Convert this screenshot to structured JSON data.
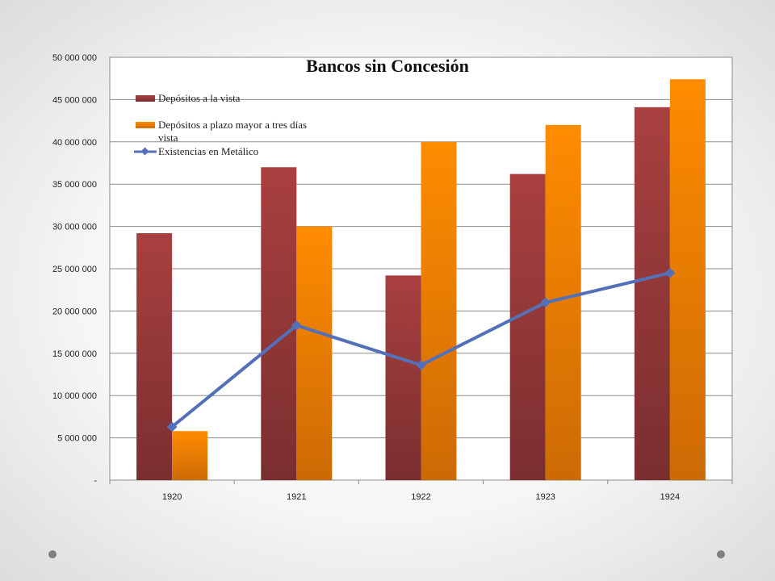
{
  "chart_data": {
    "type": "bar",
    "title": "Bancos sin Concesión",
    "xlabel": "",
    "ylabel": "",
    "categories": [
      "1920",
      "1921",
      "1922",
      "1923",
      "1924"
    ],
    "ylim": [
      0,
      50000000
    ],
    "y_ticks": [
      "-",
      "5 000 000",
      "10 000 000",
      "15 000 000",
      "20 000 000",
      "25 000 000",
      "30 000 000",
      "35 000 000",
      "40 000 000",
      "45 000 000",
      "50 000 000"
    ],
    "grid": true,
    "legend_position": "top-left",
    "series": [
      {
        "name": "Depósitos a la vista",
        "type": "bar",
        "color": "#9b3a3c",
        "values": [
          29200000,
          37000000,
          24200000,
          36200000,
          44100000
        ]
      },
      {
        "name": "Depósitos a plazo mayor a tres días vista",
        "type": "bar",
        "color": "#ff8a00",
        "values": [
          5800000,
          30000000,
          40000000,
          42000000,
          47400000
        ]
      },
      {
        "name": "Existencias en Metálico",
        "type": "line",
        "color": "#5470b8",
        "values": [
          6300000,
          18300000,
          13600000,
          21000000,
          24500000
        ]
      }
    ]
  }
}
